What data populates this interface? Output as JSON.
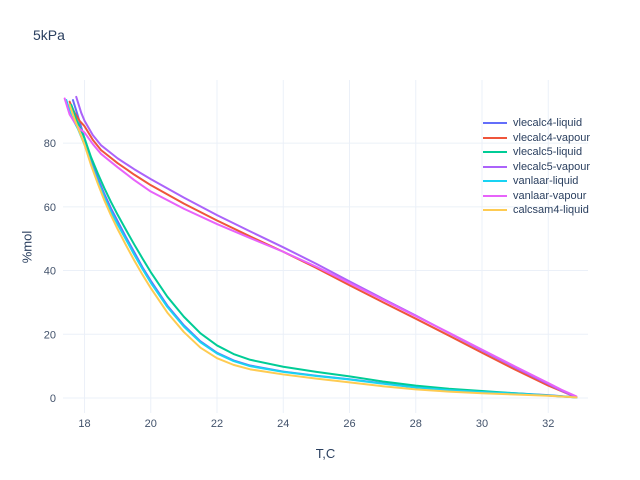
{
  "chart_data": {
    "type": "line",
    "title": "5kPa",
    "xlabel": "T,C",
    "ylabel": "%mol",
    "x_ticks": [
      18,
      20,
      22,
      24,
      26,
      28,
      30,
      32
    ],
    "y_ticks": [
      0,
      20,
      40,
      60,
      80
    ],
    "xlim": [
      17.35,
      33.2
    ],
    "ylim": [
      -4.7,
      99.8
    ],
    "grid": true,
    "grid_color": "#EBF0F8",
    "legend_position": "inside-right",
    "line_width": 2,
    "series": [
      {
        "name": "vlecalc4-liquid",
        "color": "#636efa",
        "x": [
          17.65,
          17.8,
          17.9,
          18.0,
          18.2,
          18.4,
          18.6,
          18.8,
          19.0,
          19.25,
          19.5,
          19.75,
          20.0,
          20.5,
          21.0,
          21.5,
          22.0,
          22.5,
          23.0,
          24.0,
          25.0,
          26.0,
          27.0,
          28.0,
          29.0,
          30.0,
          31.0,
          32.0,
          32.85
        ],
        "y": [
          93.5,
          88.5,
          85.0,
          81.5,
          74.5,
          69.0,
          64.0,
          59.5,
          55.5,
          50.5,
          45.8,
          41.0,
          36.8,
          29.0,
          22.8,
          17.8,
          14.2,
          11.8,
          10.2,
          8.3,
          7.0,
          5.9,
          4.6,
          3.4,
          2.6,
          2.0,
          1.5,
          0.9,
          0.2
        ]
      },
      {
        "name": "vlecalc4-vapour",
        "color": "#EF553B",
        "x": [
          17.55,
          17.7,
          17.85,
          18.0,
          18.25,
          18.5,
          19.0,
          19.5,
          20.0,
          21.0,
          22.0,
          23.0,
          24.0,
          25.0,
          26.0,
          27.0,
          28.0,
          29.0,
          30.0,
          31.0,
          32.0,
          32.85
        ],
        "y": [
          93.0,
          89.5,
          87.0,
          85.3,
          81.0,
          77.8,
          73.7,
          70.1,
          66.8,
          61.0,
          55.7,
          50.7,
          45.9,
          40.8,
          35.4,
          30.1,
          24.9,
          19.6,
          14.2,
          8.9,
          3.9,
          0.2
        ]
      },
      {
        "name": "vlecalc5-liquid",
        "color": "#00cc96",
        "x": [
          17.6,
          17.75,
          17.9,
          18.0,
          18.2,
          18.4,
          18.6,
          18.8,
          19.0,
          19.25,
          19.5,
          19.75,
          20.0,
          20.5,
          21.0,
          21.5,
          22.0,
          22.5,
          23.0,
          24.0,
          25.0,
          26.0,
          27.0,
          28.0,
          29.0,
          30.0,
          31.0,
          32.0,
          32.85
        ],
        "y": [
          92.0,
          87.5,
          84.0,
          81.5,
          75.5,
          70.5,
          65.8,
          61.5,
          57.5,
          52.8,
          48.2,
          43.8,
          39.5,
          31.8,
          25.5,
          20.3,
          16.5,
          13.8,
          12.0,
          9.8,
          8.2,
          6.8,
          5.2,
          3.9,
          2.9,
          2.2,
          1.5,
          0.8,
          0.2
        ]
      },
      {
        "name": "vlecalc5-vapour",
        "color": "#ab63fa",
        "x": [
          17.75,
          17.9,
          18.0,
          18.25,
          18.5,
          19.0,
          19.5,
          20.0,
          21.0,
          22.0,
          23.0,
          24.0,
          25.0,
          26.0,
          27.0,
          28.0,
          29.0,
          30.0,
          31.0,
          32.0,
          32.4,
          32.85
        ],
        "y": [
          94.5,
          89.5,
          87.0,
          82.5,
          79.3,
          75.2,
          71.8,
          68.7,
          62.9,
          57.4,
          52.3,
          47.3,
          42.1,
          36.6,
          31.2,
          25.9,
          20.4,
          14.9,
          9.6,
          4.4,
          2.3,
          0.3
        ]
      },
      {
        "name": "vanlaar-liquid",
        "color": "#19d3f3",
        "x": [
          17.45,
          17.6,
          17.8,
          17.9,
          18.0,
          18.2,
          18.4,
          18.6,
          18.8,
          19.0,
          19.25,
          19.5,
          19.75,
          20.0,
          20.5,
          21.0,
          21.5,
          22.0,
          22.5,
          23.0,
          24.0,
          25.0,
          26.0,
          27.0,
          28.0,
          29.0,
          30.0,
          31.0,
          32.0,
          32.85
        ],
        "y": [
          93.5,
          88.5,
          84.5,
          82.0,
          79.5,
          73.5,
          68.0,
          63.0,
          58.5,
          54.5,
          49.8,
          45.0,
          40.5,
          36.2,
          28.6,
          22.4,
          17.5,
          14.0,
          11.6,
          10.0,
          8.2,
          6.9,
          5.8,
          4.5,
          3.3,
          2.5,
          1.9,
          1.4,
          0.8,
          0.2
        ]
      },
      {
        "name": "vanlaar-vapour",
        "color": "#e763fa",
        "x": [
          17.4,
          17.55,
          17.7,
          17.85,
          18.0,
          18.25,
          18.5,
          19.0,
          19.5,
          20.0,
          21.0,
          22.0,
          23.0,
          24.0,
          25.0,
          26.0,
          27.0,
          28.0,
          29.0,
          30.0,
          31.0,
          32.0,
          32.4,
          32.85
        ],
        "y": [
          94.0,
          89.0,
          86.5,
          84.5,
          83.3,
          79.7,
          76.6,
          72.4,
          68.4,
          64.8,
          59.4,
          54.6,
          50.2,
          45.9,
          41.2,
          36.1,
          30.9,
          25.7,
          20.5,
          15.2,
          9.9,
          4.7,
          2.6,
          0.5
        ]
      },
      {
        "name": "calcsam4-liquid",
        "color": "#FECB52",
        "x": [
          17.55,
          17.7,
          17.85,
          18.0,
          18.2,
          18.4,
          18.6,
          18.8,
          19.0,
          19.25,
          19.5,
          19.75,
          20.0,
          20.5,
          21.0,
          21.5,
          22.0,
          22.5,
          23.0,
          24.0,
          25.0,
          26.0,
          27.0,
          28.0,
          29.0,
          30.0,
          31.0,
          32.0,
          32.85
        ],
        "y": [
          92.0,
          87.5,
          83.5,
          79.5,
          73.0,
          67.3,
          62.0,
          57.3,
          53.0,
          48.0,
          43.2,
          38.7,
          34.5,
          26.8,
          20.7,
          15.8,
          12.5,
          10.4,
          9.0,
          7.4,
          6.1,
          4.9,
          3.7,
          2.7,
          2.0,
          1.5,
          1.1,
          0.7,
          0.2
        ]
      }
    ],
    "text_colors": {
      "title": "#2a3f5f",
      "axis_title": "#2a3f5f",
      "tick_label": "#42526b",
      "legend_label": "#2a3f5f"
    }
  }
}
